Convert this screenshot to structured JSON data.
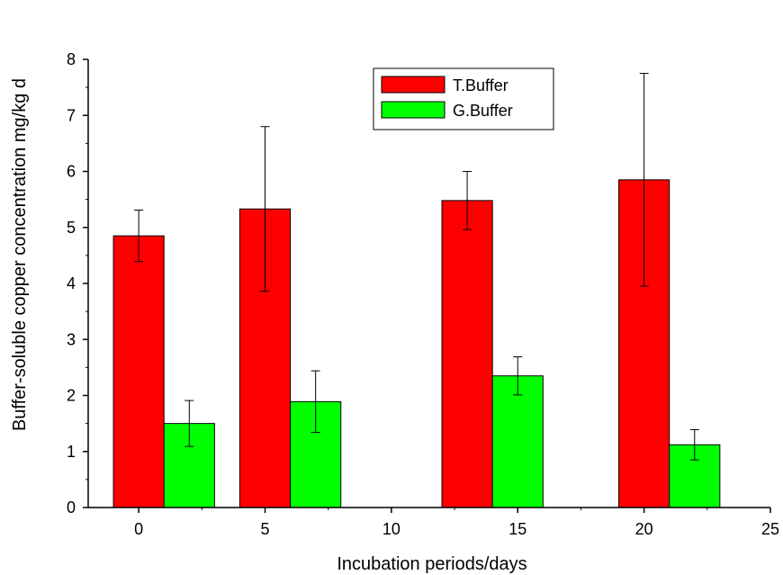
{
  "chart_data": {
    "type": "bar",
    "title": "",
    "xlabel": "Incubation periods/days",
    "ylabel": "Buffer-soluble copper concentration mg/kg d",
    "x_ticks": [
      0,
      5,
      10,
      15,
      20,
      25
    ],
    "y_ticks": [
      0,
      1,
      2,
      3,
      4,
      5,
      6,
      7,
      8
    ],
    "xlim": [
      -2,
      25
    ],
    "ylim": [
      0,
      8
    ],
    "grid": false,
    "legend_position": "top-right",
    "series": [
      {
        "name": "T.Buffer",
        "color": "#ff0000",
        "x": [
          0,
          5,
          13,
          20
        ],
        "values": [
          4.85,
          5.33,
          5.48,
          5.85
        ],
        "errors": [
          0.46,
          1.47,
          0.52,
          1.9
        ]
      },
      {
        "name": "G.Buffer",
        "color": "#00ff00",
        "x": [
          2,
          7,
          15,
          22
        ],
        "values": [
          1.5,
          1.89,
          2.35,
          1.12
        ],
        "errors": [
          0.41,
          0.55,
          0.34,
          0.27
        ]
      }
    ]
  }
}
